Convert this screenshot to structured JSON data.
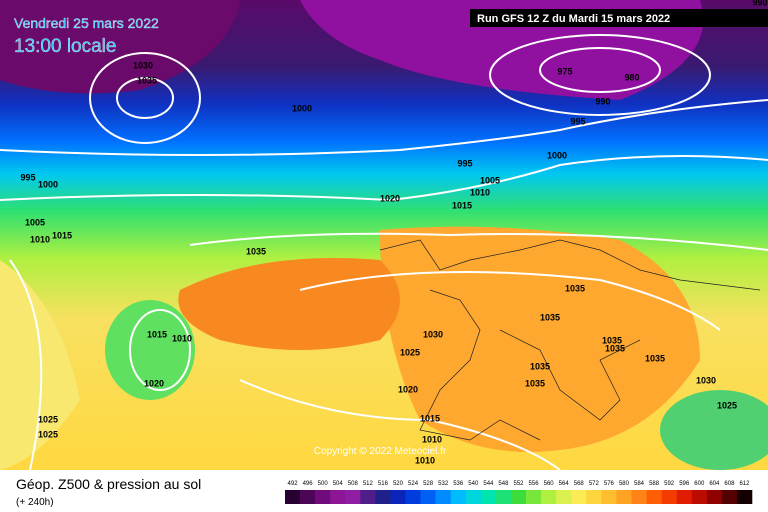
{
  "header": {
    "date": "Vendredi 25 mars 2022",
    "time": "13:00 locale",
    "run": "Run GFS 12 Z du Mardi 15 mars 2022"
  },
  "copyright": "Copyright © 2022 Meteociel.fr",
  "legend": {
    "title": "Géop. Z500 & pression au sol",
    "subtitle": "(+ 240h)",
    "scale_labels": [
      492,
      496,
      500,
      504,
      508,
      512,
      516,
      520,
      524,
      528,
      532,
      536,
      540,
      544,
      548,
      552,
      556,
      560,
      564,
      568,
      572,
      576,
      580,
      584,
      588,
      592,
      596,
      600,
      604,
      608,
      612
    ]
  },
  "isobar_labels": [
    990,
    1030,
    1035,
    975,
    980,
    990,
    995,
    1000,
    1000,
    995,
    1005,
    1010,
    1015,
    1020,
    995,
    1000,
    1005,
    1010,
    1015,
    1035,
    1035,
    1035,
    1015,
    1010,
    1030,
    1025,
    1035,
    1035,
    1035,
    1035,
    1035,
    1030,
    1020,
    1020,
    1025,
    1015,
    1025,
    1025,
    1010,
    1010
  ]
}
